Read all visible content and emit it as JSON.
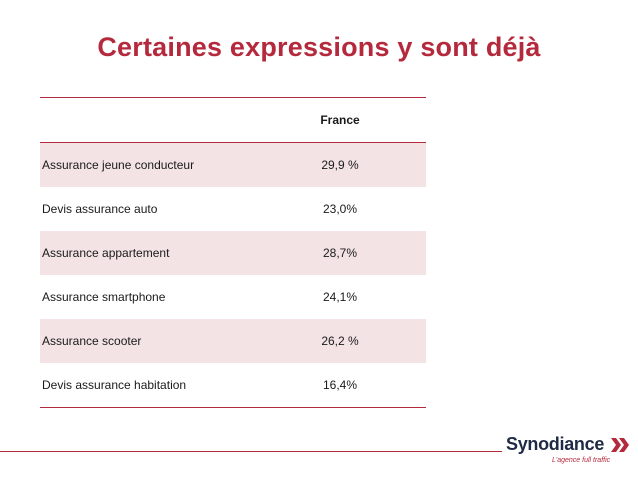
{
  "title": "Certaines expressions y sont déjà",
  "table": {
    "column_header": "France",
    "rows": [
      {
        "label": "Assurance jeune conducteur",
        "value": "29,9 %"
      },
      {
        "label": "Devis assurance auto",
        "value": "23,0%"
      },
      {
        "label": "Assurance appartement",
        "value": "28,7%"
      },
      {
        "label": "Assurance smartphone",
        "value": "24,1%"
      },
      {
        "label": "Assurance scooter",
        "value": "26,2 %"
      },
      {
        "label": "Devis assurance habitation",
        "value": "16,4%"
      }
    ]
  },
  "brand": {
    "name": "Synodiance",
    "tagline": "L'agence full traffic",
    "icon": "double-chevron-right-icon",
    "accent_color": "#b5293d",
    "shade_color": "#f3e3e4",
    "text_color": "#1f2a44"
  }
}
